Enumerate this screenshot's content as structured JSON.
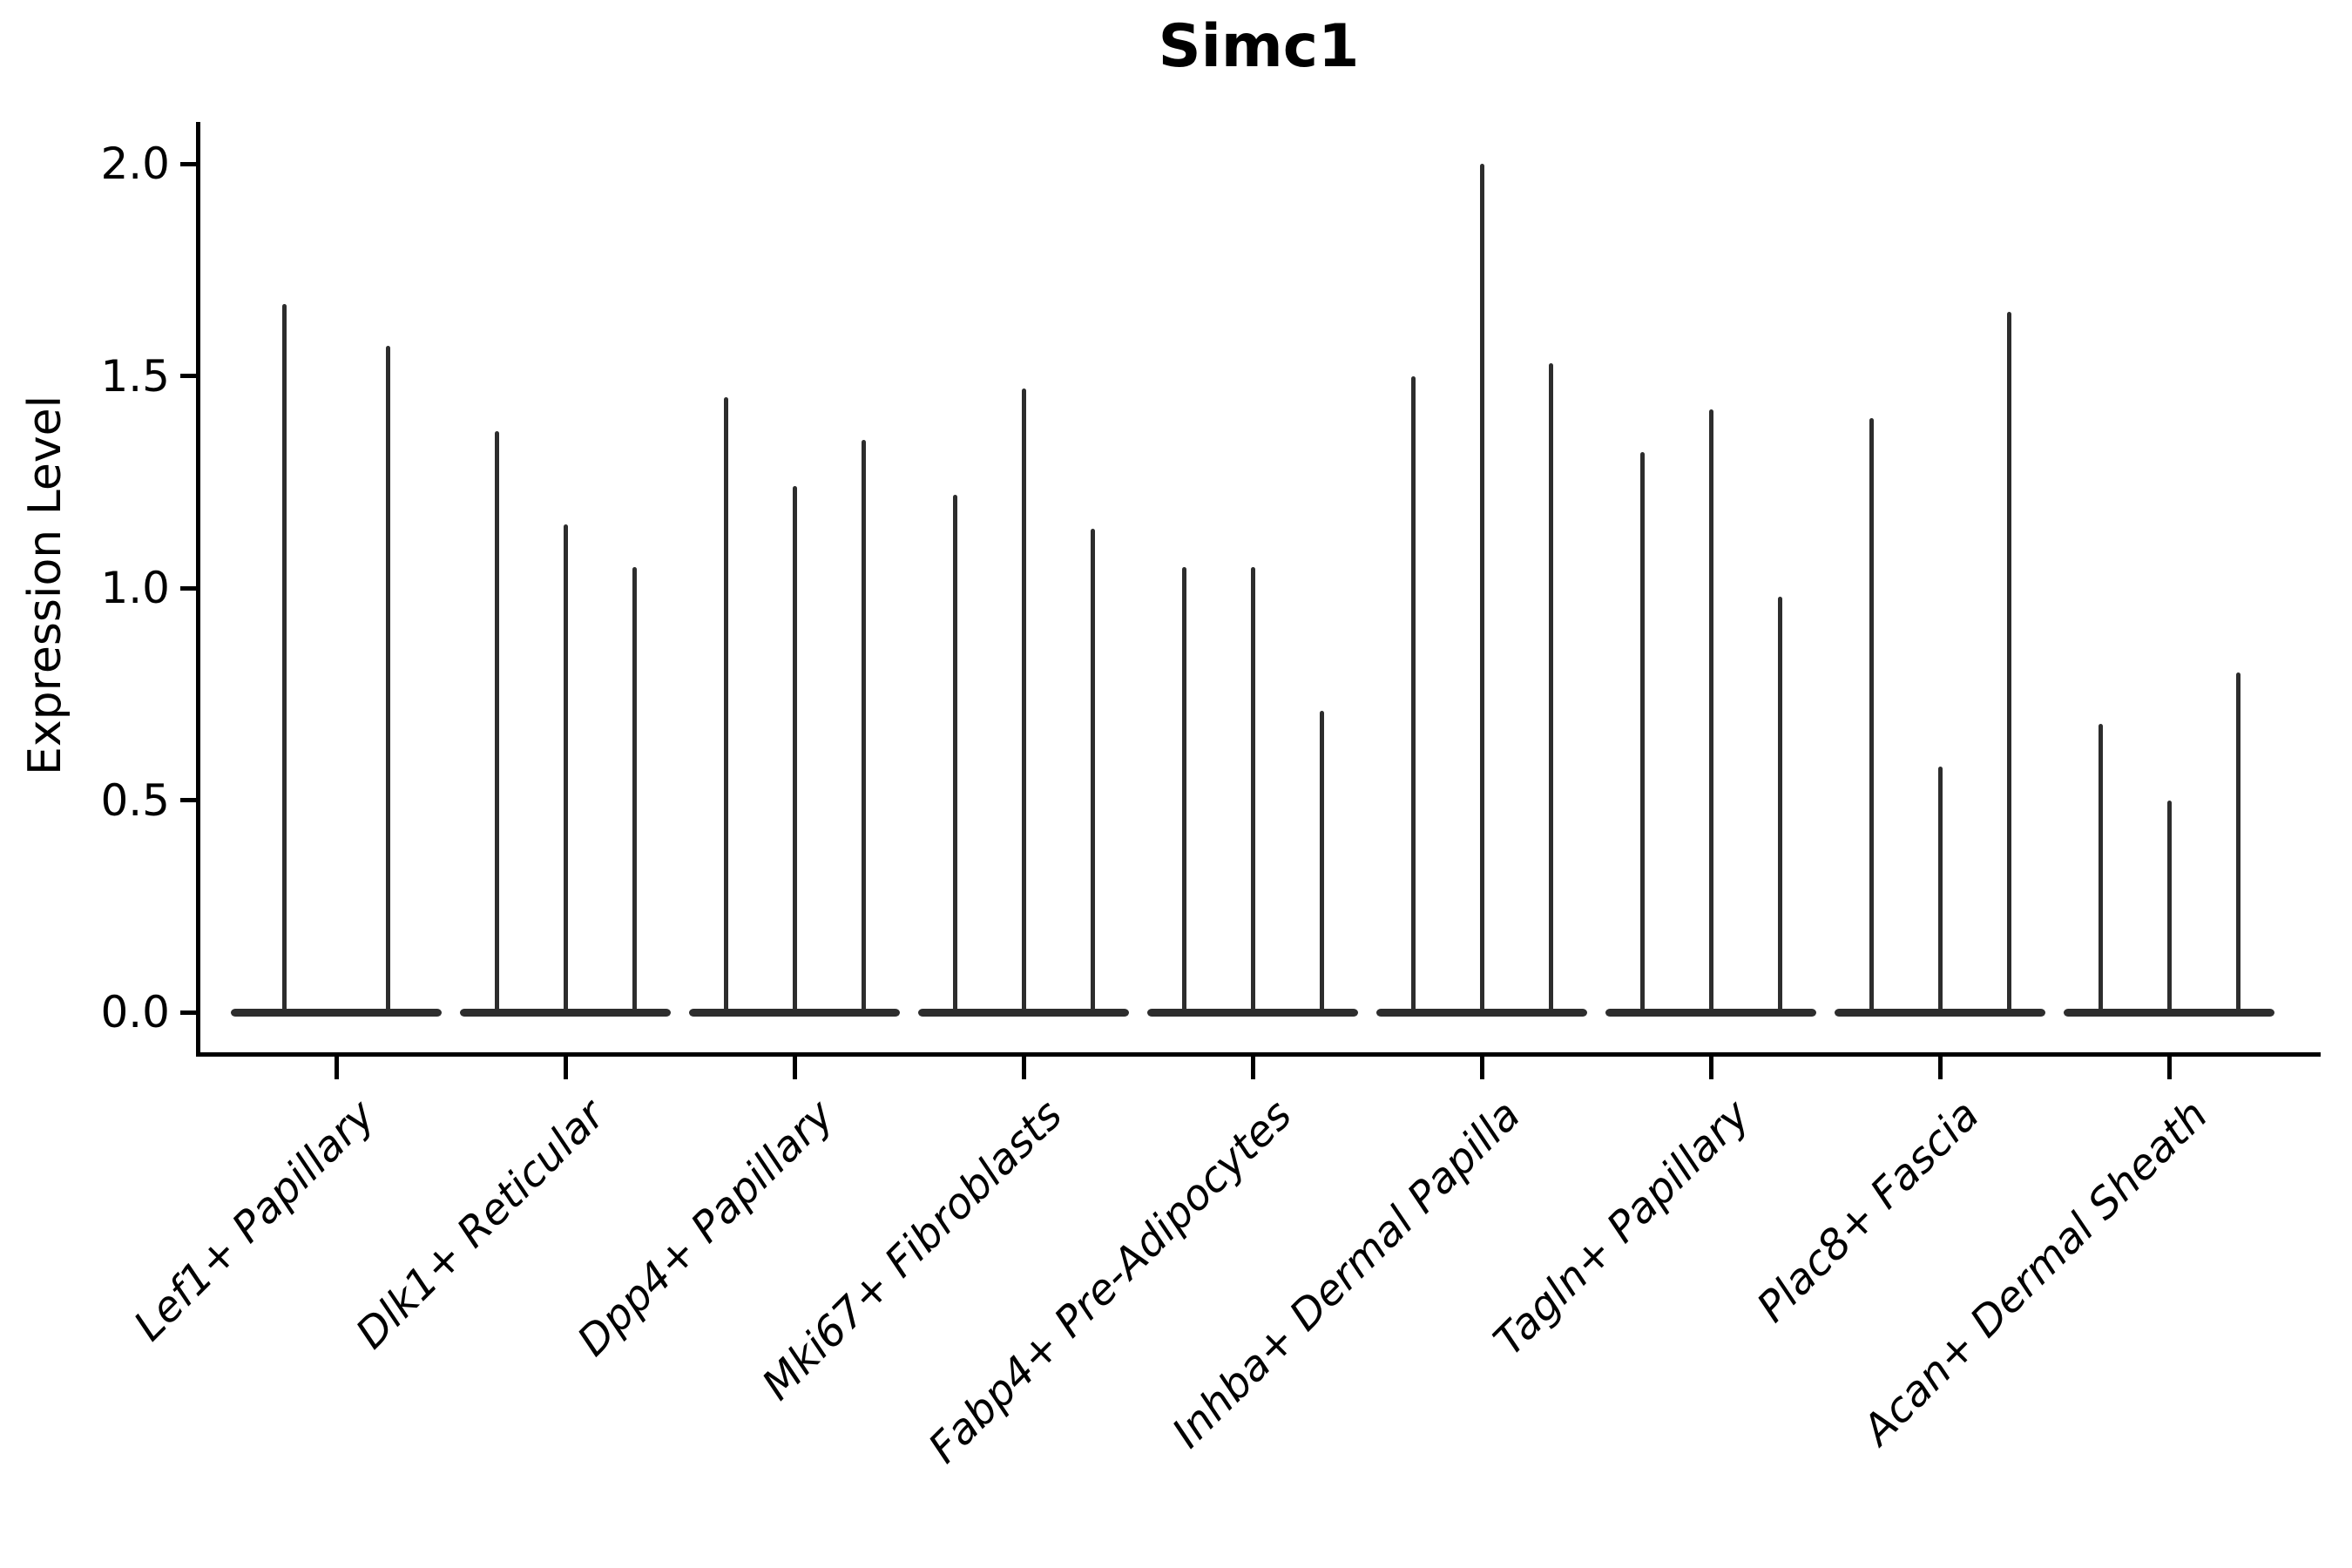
{
  "title": "Simc1",
  "y_axis": {
    "label": "Expression Level",
    "tick_labels": [
      "0.0",
      "0.5",
      "1.0",
      "1.5",
      "2.0"
    ]
  },
  "chart_data": {
    "type": "violin",
    "title": "Simc1",
    "ylabel": "Expression Level",
    "xlabel": "",
    "ylim": [
      0.0,
      2.1
    ],
    "y_ticks": [
      0.0,
      0.5,
      1.0,
      1.5,
      2.0
    ],
    "grid": false,
    "legend": "none",
    "x_tick_rotation": 45,
    "violin_color": "#2d2d2d",
    "axis_color": "#000000",
    "background": "#ffffff",
    "shape_note": "each violin collapses to a thin vertical spike with a wide flat base at expression 0; spike top = maximum expression",
    "categories": [
      "Lef1+ Papillary",
      "Dlk1+ Reticular",
      "Dpp4+ Papillary",
      "Mki67+ Fibroblasts",
      "Fabp4+ Pre-Adipocytes",
      "Inhba+ Dermal Papilla",
      "Tagln+ Papillary",
      "Plac8+ Fascia",
      "Acan+ Dermal Sheath"
    ],
    "groups": [
      {
        "category": "Lef1+ Papillary",
        "baseline_value": 0.0,
        "spike_maxima": [
          1.67,
          1.57
        ]
      },
      {
        "category": "Dlk1+ Reticular",
        "baseline_value": 0.0,
        "spike_maxima": [
          1.37,
          1.15,
          1.05
        ]
      },
      {
        "category": "Dpp4+ Papillary",
        "baseline_value": 0.0,
        "spike_maxima": [
          1.45,
          1.24,
          1.35
        ]
      },
      {
        "category": "Mki67+ Fibroblasts",
        "baseline_value": 0.0,
        "spike_maxima": [
          1.22,
          1.47,
          1.14
        ]
      },
      {
        "category": "Fabp4+ Pre-Adipocytes",
        "baseline_value": 0.0,
        "spike_maxima": [
          1.05,
          1.05,
          0.71
        ]
      },
      {
        "category": "Inhba+ Dermal Papilla",
        "baseline_value": 0.0,
        "spike_maxima": [
          1.5,
          2.0,
          1.53
        ]
      },
      {
        "category": "Tagln+ Papillary",
        "baseline_value": 0.0,
        "spike_maxima": [
          1.32,
          1.42,
          0.98
        ]
      },
      {
        "category": "Plac8+ Fascia",
        "baseline_value": 0.0,
        "spike_maxima": [
          1.4,
          0.58,
          1.65
        ]
      },
      {
        "category": "Acan+ Dermal Sheath",
        "baseline_value": 0.0,
        "spike_maxima": [
          0.68,
          0.5,
          0.8
        ]
      }
    ]
  }
}
